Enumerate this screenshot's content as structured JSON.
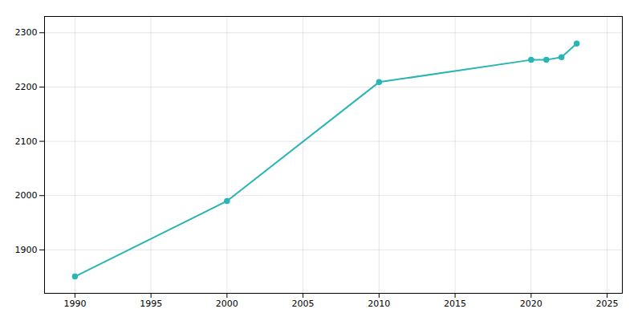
{
  "chart_data": {
    "type": "line",
    "x": [
      1990,
      2000,
      2010,
      2020,
      2021,
      2022,
      2023
    ],
    "values": [
      1851,
      1990,
      2209,
      2250,
      2250,
      2255,
      2280
    ],
    "color": "#2ab5b5",
    "marker": "circle",
    "xlim": [
      1988,
      2026
    ],
    "ylim": [
      1820,
      2330
    ],
    "xticks": [
      1990,
      1995,
      2000,
      2005,
      2010,
      2015,
      2020,
      2025
    ],
    "yticks": [
      1900,
      2000,
      2100,
      2200,
      2300
    ],
    "grid": true
  }
}
